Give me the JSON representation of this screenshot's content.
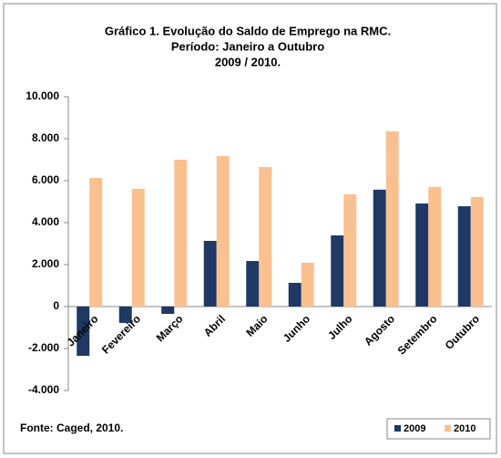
{
  "chart_data": {
    "type": "bar",
    "title": [
      "Gráfico 1. Evolução do  Saldo de Emprego na RMC.",
      "Período: Janeiro a Outubro",
      "2009 / 2010."
    ],
    "source": "Fonte: Caged,  2010.",
    "categories": [
      "Janeiro",
      "Fevereiro",
      "Março",
      "Abril",
      "Maio",
      "Junho",
      "Julho",
      "Agosto",
      "Setembro",
      "Outubro"
    ],
    "series": [
      {
        "name": "2009",
        "color": "#1f3864",
        "values": [
          -2350,
          -780,
          -350,
          3130,
          2170,
          1130,
          3390,
          5570,
          4910,
          4780
        ]
      },
      {
        "name": "2010",
        "color": "#fac090",
        "values": [
          6130,
          5610,
          7000,
          7170,
          6650,
          2090,
          5350,
          8350,
          5700,
          5220
        ]
      }
    ],
    "ylim": [
      -4000,
      10000
    ],
    "yticks": [
      {
        "value": -4000,
        "label": "-4.000"
      },
      {
        "value": -2000,
        "label": "-2.000"
      },
      0,
      {
        "value": 2000,
        "label": "2.000"
      },
      {
        "value": 4000,
        "label": "4.000"
      },
      {
        "value": 6000,
        "label": "6.000"
      },
      {
        "value": 8000,
        "label": "8.000"
      },
      {
        "value": 10000,
        "label": "10.000"
      }
    ],
    "legend": "bottom-right"
  }
}
